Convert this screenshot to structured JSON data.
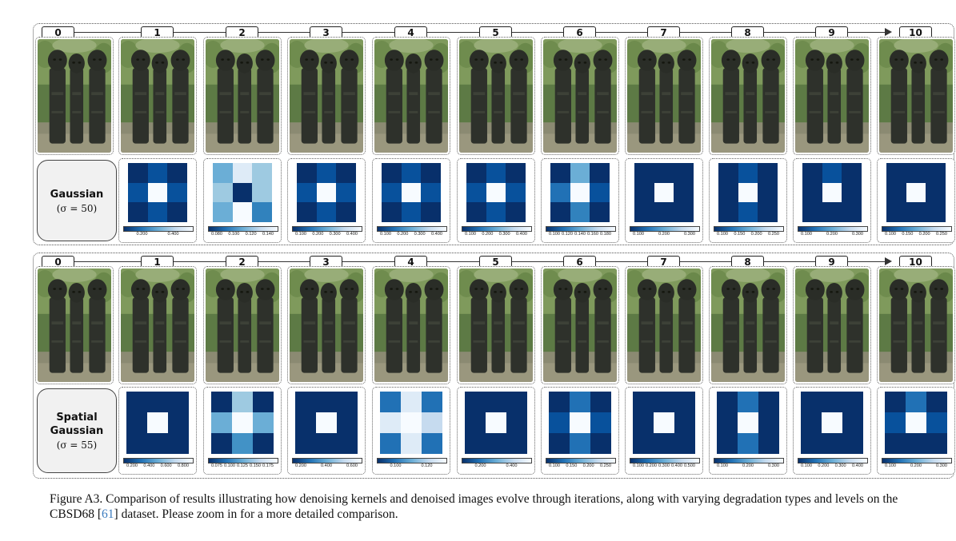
{
  "figure": {
    "caption_prefix": "Figure A3. Comparison of results illustrating how denoising kernels and denoised images evolve through iterations, along with varying degradation types and levels on the CBSD68 [",
    "caption_cite": "61",
    "caption_suffix": "] dataset. Please zoom in for a more detailed comparison."
  },
  "iterations": [
    "0",
    "1",
    "2",
    "3",
    "4",
    "5",
    "6",
    "7",
    "8",
    "9",
    "10"
  ],
  "rows": [
    {
      "title": "Gaussian",
      "sub": "(σ = 50)",
      "kernels": [
        {
          "colors": [
            "#08306b",
            "#08519c",
            "#08306b",
            "#08519c",
            "#f7fbff",
            "#08519c",
            "#08306b",
            "#08519c",
            "#08306b"
          ],
          "ticks": [
            "0.200",
            "0.400"
          ]
        },
        {
          "colors": [
            "#6baed6",
            "#deebf7",
            "#9ecae1",
            "#9ecae1",
            "#08306b",
            "#9ecae1",
            "#6baed6",
            "#f7fbff",
            "#3182bd"
          ],
          "ticks": [
            "0.080",
            "0.100",
            "0.120",
            "0.140"
          ]
        },
        {
          "colors": [
            "#08306b",
            "#08519c",
            "#08306b",
            "#08519c",
            "#f7fbff",
            "#08519c",
            "#08306b",
            "#08519c",
            "#08306b"
          ],
          "ticks": [
            "0.100",
            "0.200",
            "0.300",
            "0.400"
          ]
        },
        {
          "colors": [
            "#08306b",
            "#08519c",
            "#08306b",
            "#08519c",
            "#f7fbff",
            "#08519c",
            "#08306b",
            "#08519c",
            "#08306b"
          ],
          "ticks": [
            "0.100",
            "0.200",
            "0.300",
            "0.400"
          ]
        },
        {
          "colors": [
            "#08306b",
            "#08519c",
            "#08306b",
            "#08519c",
            "#f7fbff",
            "#08519c",
            "#08306b",
            "#08519c",
            "#08306b"
          ],
          "ticks": [
            "0.100",
            "0.200",
            "0.300",
            "0.400"
          ]
        },
        {
          "colors": [
            "#08306b",
            "#6baed6",
            "#08306b",
            "#2171b5",
            "#f7fbff",
            "#08519c",
            "#08306b",
            "#3182bd",
            "#08306b"
          ],
          "ticks": [
            "0.100",
            "0.120",
            "0.140",
            "0.160",
            "0.180"
          ]
        },
        {
          "colors": [
            "#08306b",
            "#08306b",
            "#08306b",
            "#08306b",
            "#f7fbff",
            "#08306b",
            "#08306b",
            "#08306b",
            "#08306b"
          ],
          "ticks": [
            "0.100",
            "0.200",
            "0.300"
          ]
        },
        {
          "colors": [
            "#08306b",
            "#08519c",
            "#08306b",
            "#08306b",
            "#f7fbff",
            "#08306b",
            "#08306b",
            "#08519c",
            "#08306b"
          ],
          "ticks": [
            "0.100",
            "0.150",
            "0.200",
            "0.250"
          ]
        },
        {
          "colors": [
            "#08306b",
            "#08519c",
            "#08306b",
            "#08306b",
            "#f7fbff",
            "#08306b",
            "#08306b",
            "#08306b",
            "#08306b"
          ],
          "ticks": [
            "0.100",
            "0.200",
            "0.300"
          ]
        },
        {
          "colors": [
            "#08306b",
            "#08306b",
            "#08306b",
            "#08306b",
            "#f7fbff",
            "#08306b",
            "#08306b",
            "#08306b",
            "#08306b"
          ],
          "ticks": [
            "0.100",
            "0.150",
            "0.200",
            "0.250"
          ]
        }
      ]
    },
    {
      "title": "Spatial\nGaussian",
      "sub": "(σ = 55)",
      "kernels": [
        {
          "colors": [
            "#08306b",
            "#08306b",
            "#08306b",
            "#08306b",
            "#f7fbff",
            "#08306b",
            "#08306b",
            "#08306b",
            "#08306b"
          ],
          "ticks": [
            "0.200",
            "0.400",
            "0.600",
            "0.800"
          ]
        },
        {
          "colors": [
            "#08306b",
            "#9ecae1",
            "#08306b",
            "#6baed6",
            "#f7fbff",
            "#6baed6",
            "#08306b",
            "#4292c6",
            "#08306b"
          ],
          "ticks": [
            "0.075",
            "0.100",
            "0.125",
            "0.150",
            "0.175"
          ]
        },
        {
          "colors": [
            "#08306b",
            "#08306b",
            "#08306b",
            "#08306b",
            "#f7fbff",
            "#08306b",
            "#08306b",
            "#08306b",
            "#08306b"
          ],
          "ticks": [
            "0.200",
            "0.400",
            "0.600"
          ]
        },
        {
          "colors": [
            "#2171b5",
            "#deebf7",
            "#2171b5",
            "#deebf7",
            "#f7fbff",
            "#c6dbef",
            "#2171b5",
            "#deebf7",
            "#2171b5"
          ],
          "ticks": [
            "0.100",
            "0.120"
          ]
        },
        {
          "colors": [
            "#08306b",
            "#08306b",
            "#08306b",
            "#08306b",
            "#f7fbff",
            "#08306b",
            "#08306b",
            "#08306b",
            "#08306b"
          ],
          "ticks": [
            "0.200",
            "0.400"
          ]
        },
        {
          "colors": [
            "#08306b",
            "#2171b5",
            "#08306b",
            "#08519c",
            "#f7fbff",
            "#08519c",
            "#08306b",
            "#2171b5",
            "#08306b"
          ],
          "ticks": [
            "0.100",
            "0.150",
            "0.200",
            "0.250"
          ]
        },
        {
          "colors": [
            "#08306b",
            "#08306b",
            "#08306b",
            "#08306b",
            "#f7fbff",
            "#08306b",
            "#08306b",
            "#08306b",
            "#08306b"
          ],
          "ticks": [
            "0.100",
            "0.200",
            "0.300",
            "0.400",
            "0.500"
          ]
        },
        {
          "colors": [
            "#08306b",
            "#2171b5",
            "#08306b",
            "#08306b",
            "#f7fbff",
            "#08306b",
            "#08306b",
            "#2171b5",
            "#08306b"
          ],
          "ticks": [
            "0.100",
            "0.200",
            "0.300"
          ]
        },
        {
          "colors": [
            "#08306b",
            "#08306b",
            "#08306b",
            "#08306b",
            "#f7fbff",
            "#08306b",
            "#08306b",
            "#08306b",
            "#08306b"
          ],
          "ticks": [
            "0.100",
            "0.200",
            "0.300",
            "0.400"
          ]
        },
        {
          "colors": [
            "#08306b",
            "#2171b5",
            "#08306b",
            "#08519c",
            "#f7fbff",
            "#08519c",
            "#08306b",
            "#08306b",
            "#08306b"
          ],
          "ticks": [
            "0.100",
            "0.200",
            "0.300"
          ]
        }
      ]
    }
  ]
}
